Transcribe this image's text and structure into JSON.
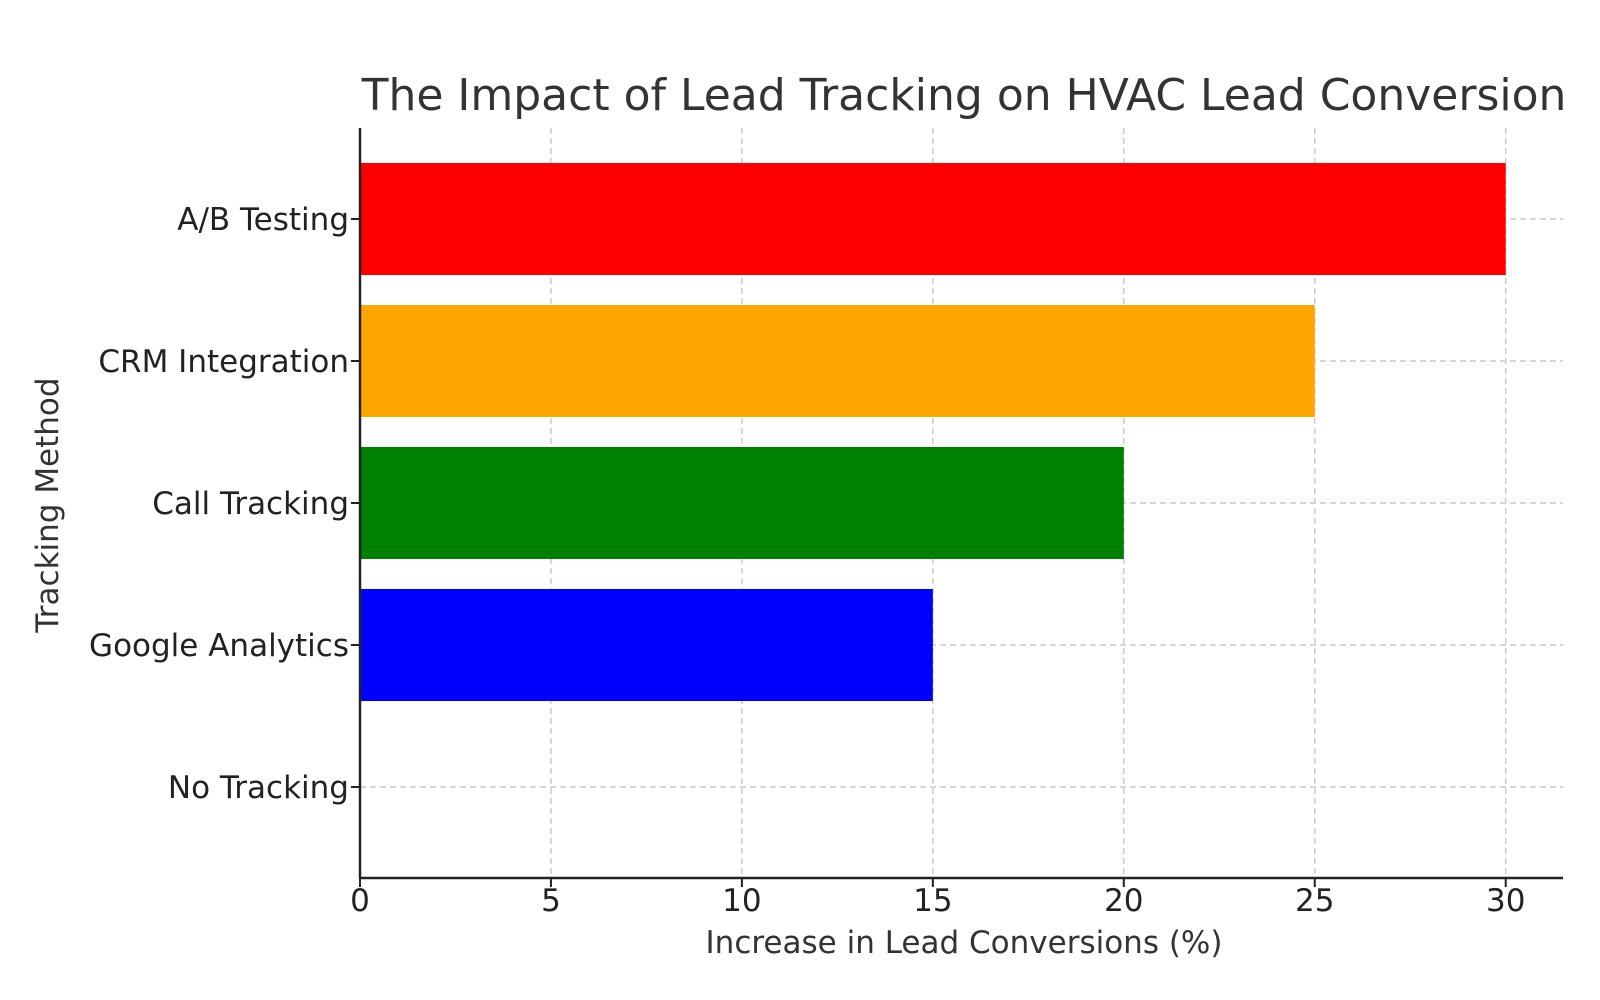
{
  "chart_data": {
    "type": "bar",
    "orientation": "horizontal",
    "title": "The Impact of Lead Tracking on HVAC Lead Conversion",
    "xlabel": "Increase in Lead Conversions (%)",
    "ylabel": "Tracking Method",
    "categories": [
      "No Tracking",
      "Google Analytics",
      "Call Tracking",
      "CRM Integration",
      "A/B Testing"
    ],
    "values": [
      0,
      15,
      20,
      25,
      30
    ],
    "colors": [
      "#ffffff",
      "#0000ff",
      "#008000",
      "#ffa500",
      "#ff0000"
    ],
    "xlim": [
      0,
      31.5
    ],
    "xticks": [
      "0",
      "5",
      "10",
      "15",
      "20",
      "25",
      "30"
    ],
    "grid": true
  }
}
